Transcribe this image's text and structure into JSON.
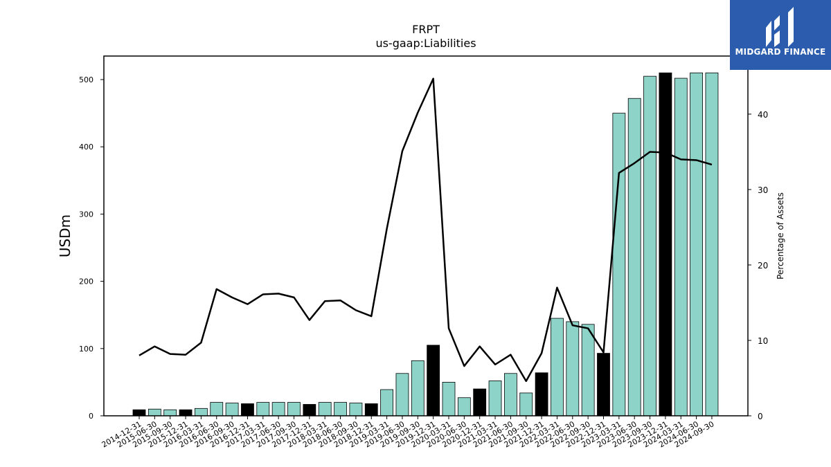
{
  "logo": {
    "text": "MIDGARD FINANCE"
  },
  "chart_data": {
    "type": "bar",
    "title": "FRPT",
    "subtitle": "us-gaap:Liabilities",
    "ylabel": "USDm",
    "y2label": "Percentage of Assets",
    "ylim": [
      0,
      535
    ],
    "y2lim": [
      0,
      47.7
    ],
    "yticks": [
      0,
      100,
      200,
      300,
      400,
      500
    ],
    "y2ticks": [
      0,
      10,
      20,
      30,
      40
    ],
    "grid": false,
    "colors": {
      "bar": "#8ed3c7",
      "highlight": "#000000",
      "line": "#000000"
    },
    "categories": [
      "2014-12-31",
      "2015-06-30",
      "2015-09-30",
      "2015-12-31",
      "2016-03-31",
      "2016-06-30",
      "2016-09-30",
      "2016-12-31",
      "2017-03-31",
      "2017-06-30",
      "2017-09-30",
      "2017-12-31",
      "2018-03-31",
      "2018-06-30",
      "2018-09-30",
      "2018-12-31",
      "2019-03-31",
      "2019-06-30",
      "2019-09-30",
      "2019-12-31",
      "2020-03-31",
      "2020-06-30",
      "2020-12-31",
      "2021-03-31",
      "2021-06-30",
      "2021-09-30",
      "2021-12-31",
      "2022-03-31",
      "2022-06-30",
      "2022-09-30",
      "2022-12-31",
      "2023-03-31",
      "2023-06-30",
      "2023-09-30",
      "2023-12-31",
      "2024-03-31",
      "2024-06-30",
      "2024-09-30"
    ],
    "series": [
      {
        "type": "bar",
        "values": [
          9,
          10,
          9,
          9,
          11,
          20,
          19,
          18,
          20,
          20,
          20,
          17,
          20,
          20,
          19,
          18,
          39,
          63,
          82,
          105,
          50,
          27,
          40,
          52,
          63,
          34,
          64,
          145,
          140,
          136,
          93,
          450,
          472,
          505,
          510,
          502,
          510,
          510
        ],
        "highlight": [
          true,
          false,
          false,
          true,
          false,
          false,
          false,
          true,
          false,
          false,
          false,
          true,
          false,
          false,
          false,
          true,
          false,
          false,
          false,
          true,
          false,
          false,
          true,
          false,
          false,
          false,
          true,
          false,
          false,
          false,
          true,
          false,
          false,
          false,
          true,
          false,
          false,
          false
        ]
      },
      {
        "type": "line",
        "axis": "right",
        "values": [
          8.0,
          9.2,
          8.2,
          8.1,
          9.7,
          16.8,
          15.7,
          14.8,
          16.1,
          16.2,
          15.7,
          12.7,
          15.2,
          15.3,
          14.0,
          13.2,
          24.8,
          35.1,
          40.2,
          44.7,
          11.6,
          6.6,
          9.2,
          6.8,
          8.1,
          4.6,
          8.3,
          17.0,
          12.0,
          11.6,
          8.4,
          32.2,
          33.5,
          35.0,
          34.9,
          34.0,
          33.9,
          33.3
        ]
      }
    ]
  }
}
